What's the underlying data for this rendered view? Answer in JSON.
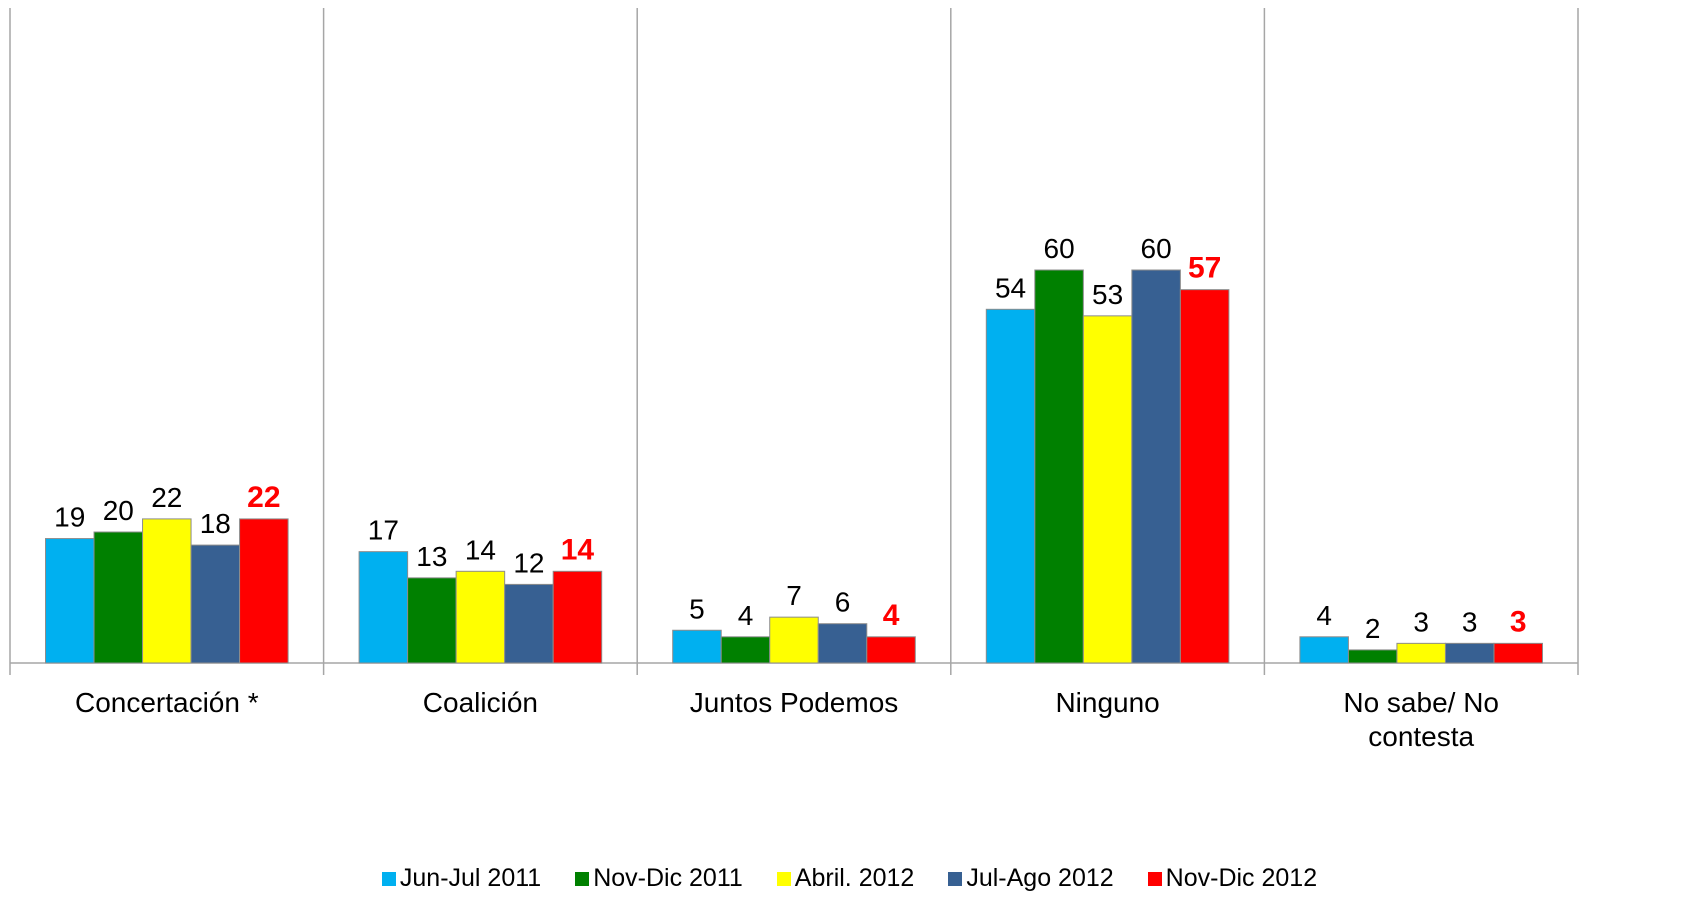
{
  "chart_data": {
    "type": "bar",
    "categories": [
      "Concertación *",
      "Coalición",
      "Juntos Podemos",
      "Ninguno",
      "No sabe/ No contesta"
    ],
    "series": [
      {
        "name": "Jun-Jul 2011",
        "color": "#00b0f0",
        "values": [
          19,
          17,
          5,
          54,
          4
        ]
      },
      {
        "name": "Nov-Dic 2011",
        "color": "#008000",
        "values": [
          20,
          13,
          4,
          60,
          2
        ]
      },
      {
        "name": "Abril. 2012",
        "color": "#ffff00",
        "values": [
          22,
          14,
          7,
          53,
          3
        ]
      },
      {
        "name": "Jul-Ago 2012",
        "color": "#376092",
        "values": [
          18,
          12,
          6,
          60,
          3
        ]
      },
      {
        "name": "Nov-Dic 2012",
        "color": "#ff0000",
        "values": [
          22,
          14,
          4,
          57,
          3
        ]
      }
    ],
    "ylim": [
      0,
      100
    ],
    "legend": "bottom"
  }
}
